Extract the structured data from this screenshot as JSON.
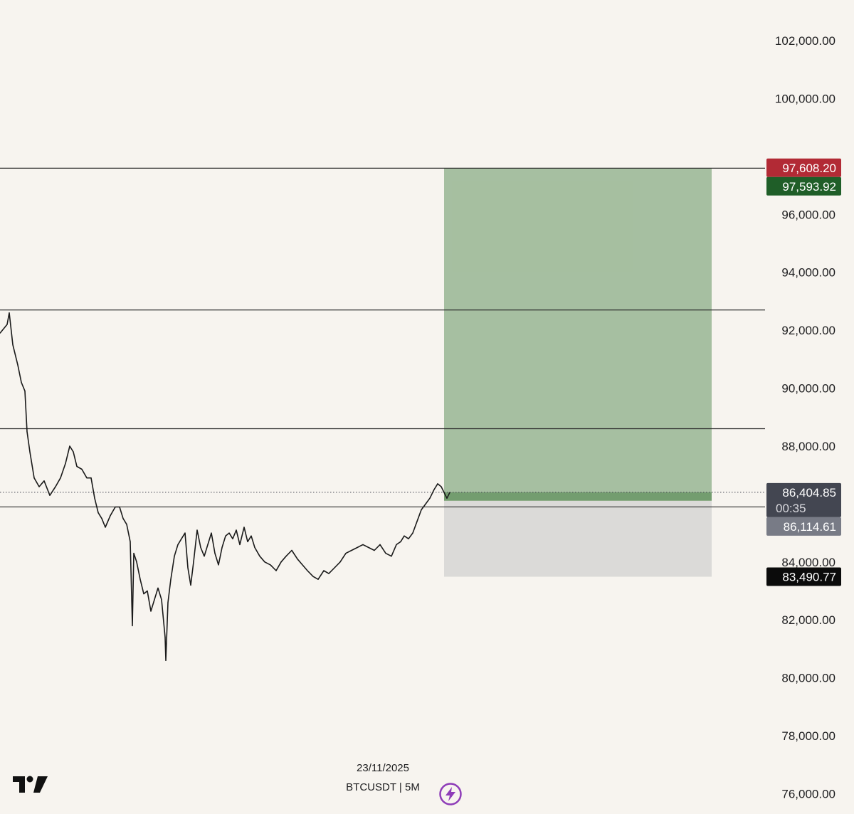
{
  "chart_data": {
    "type": "line",
    "symbol": "BTCUSDT",
    "timeframe": "5M",
    "footer_date": "23/11/2025",
    "footer_symbol": "BTCUSDT | 5M",
    "y_axis": {
      "ylim": [
        75300,
        103400
      ],
      "ticks": [
        "102,000.00",
        "100,000.00",
        "96,000.00",
        "94,000.00",
        "92,000.00",
        "90,000.00",
        "88,000.00",
        "84,000.00",
        "82,000.00",
        "80,000.00",
        "78,000.00",
        "76,000.00"
      ],
      "tick_values": [
        102000,
        100000,
        96000,
        94000,
        92000,
        90000,
        88000,
        84000,
        82000,
        80000,
        78000,
        76000
      ]
    },
    "x_range": [
      0,
      1000
    ],
    "series": [
      {
        "color": "#1a1a1a",
        "points": [
          [
            0,
            91900
          ],
          [
            10,
            92200
          ],
          [
            13,
            92600
          ],
          [
            18,
            91500
          ],
          [
            25,
            90800
          ],
          [
            30,
            90200
          ],
          [
            35,
            89900
          ],
          [
            38,
            88500
          ],
          [
            42,
            87800
          ],
          [
            48,
            86900
          ],
          [
            55,
            86600
          ],
          [
            62,
            86800
          ],
          [
            70,
            86300
          ],
          [
            78,
            86600
          ],
          [
            85,
            86900
          ],
          [
            92,
            87400
          ],
          [
            98,
            88000
          ],
          [
            103,
            87800
          ],
          [
            108,
            87300
          ],
          [
            115,
            87200
          ],
          [
            122,
            86900
          ],
          [
            128,
            86900
          ],
          [
            133,
            86200
          ],
          [
            138,
            85700
          ],
          [
            143,
            85500
          ],
          [
            148,
            85200
          ],
          [
            155,
            85600
          ],
          [
            162,
            85900
          ],
          [
            168,
            85900
          ],
          [
            173,
            85500
          ],
          [
            178,
            85300
          ],
          [
            183,
            84700
          ],
          [
            186,
            81800
          ],
          [
            188,
            84300
          ],
          [
            192,
            84000
          ],
          [
            197,
            83400
          ],
          [
            202,
            82900
          ],
          [
            207,
            83000
          ],
          [
            212,
            82300
          ],
          [
            217,
            82700
          ],
          [
            222,
            83100
          ],
          [
            227,
            82700
          ],
          [
            232,
            81400
          ],
          [
            233,
            80600
          ],
          [
            236,
            82600
          ],
          [
            240,
            83400
          ],
          [
            245,
            84200
          ],
          [
            250,
            84600
          ],
          [
            255,
            84800
          ],
          [
            260,
            85000
          ],
          [
            264,
            83800
          ],
          [
            268,
            83200
          ],
          [
            272,
            84000
          ],
          [
            277,
            85100
          ],
          [
            282,
            84500
          ],
          [
            287,
            84200
          ],
          [
            292,
            84600
          ],
          [
            297,
            85000
          ],
          [
            302,
            84300
          ],
          [
            307,
            83900
          ],
          [
            312,
            84500
          ],
          [
            317,
            84900
          ],
          [
            322,
            85000
          ],
          [
            327,
            84800
          ],
          [
            332,
            85100
          ],
          [
            337,
            84600
          ],
          [
            343,
            85200
          ],
          [
            348,
            84700
          ],
          [
            353,
            84900
          ],
          [
            358,
            84500
          ],
          [
            365,
            84200
          ],
          [
            372,
            84000
          ],
          [
            380,
            83900
          ],
          [
            388,
            83700
          ],
          [
            395,
            84000
          ],
          [
            402,
            84200
          ],
          [
            410,
            84400
          ],
          [
            418,
            84100
          ],
          [
            425,
            83900
          ],
          [
            432,
            83700
          ],
          [
            440,
            83500
          ],
          [
            447,
            83400
          ],
          [
            455,
            83700
          ],
          [
            462,
            83600
          ],
          [
            470,
            83800
          ],
          [
            478,
            84000
          ],
          [
            486,
            84300
          ],
          [
            494,
            84400
          ],
          [
            502,
            84500
          ],
          [
            510,
            84600
          ],
          [
            518,
            84500
          ],
          [
            526,
            84400
          ],
          [
            534,
            84600
          ],
          [
            542,
            84300
          ],
          [
            550,
            84200
          ],
          [
            557,
            84600
          ],
          [
            563,
            84700
          ],
          [
            568,
            84900
          ],
          [
            574,
            84800
          ],
          [
            580,
            85000
          ],
          [
            586,
            85400
          ],
          [
            592,
            85800
          ],
          [
            598,
            86000
          ],
          [
            604,
            86200
          ],
          [
            610,
            86500
          ],
          [
            615,
            86700
          ],
          [
            620,
            86600
          ],
          [
            624,
            86400
          ],
          [
            628,
            86200
          ],
          [
            632,
            86400
          ]
        ]
      }
    ],
    "horizontal_levels": [
      97593.92,
      92700,
      88600,
      85900
    ],
    "current_price": 86404.85,
    "position": {
      "type": "long",
      "entry": 86114.61,
      "stop": 83490.77,
      "target": 97593.92,
      "x_start": 624,
      "x_end": 1000,
      "profit_color": "#8fb08a",
      "loss_color": "#c8c8c8"
    },
    "badges": [
      {
        "text": "97,608.20",
        "value": 97608.2,
        "bg": "#b22a35"
      },
      {
        "text": "97,593.92",
        "value": 97593.92,
        "bg": "#1f5e28"
      },
      {
        "text": "86,404.85",
        "value": 86404.85,
        "bg": "#434651",
        "subtext": "00:35"
      },
      {
        "text": "86,114.61",
        "value": 86114.61,
        "bg": "#787b86"
      },
      {
        "text": "83,490.77",
        "value": 83490.77,
        "bg": "#0b0b0b"
      }
    ],
    "grid": false
  },
  "branding": {
    "logo_icon": "tradingview-logo-icon",
    "bolt_icon": "lightning-bolt-icon",
    "bolt_color": "#8e3cb8"
  }
}
